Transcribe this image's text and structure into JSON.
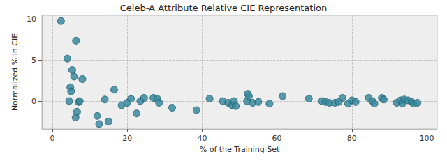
{
  "chart_data": {
    "type": "scatter",
    "title": "Celeb-A Attribute Relative CIE Representation",
    "x_label": "% of the Training Set",
    "y_label": "Normalized % in CIE",
    "x": [
      2.3,
      4,
      4.5,
      4.8,
      5,
      5.3,
      5.8,
      6.3,
      6.2,
      6.6,
      7,
      7.3,
      8,
      12,
      12.5,
      14,
      15,
      16.5,
      18.5,
      20,
      21,
      22.5,
      23.5,
      24.5,
      27,
      28,
      28.5,
      32,
      38.5,
      42,
      45.5,
      47,
      48,
      48.5,
      49,
      52,
      52.2,
      52.5,
      53.5,
      55,
      58,
      61.5,
      68.5,
      72,
      73,
      74,
      75.5,
      76.5,
      77.5,
      79,
      80,
      81,
      84.5,
      85.5,
      86,
      88,
      88.5,
      92,
      93,
      93.5,
      94,
      95,
      96,
      96.5,
      97.5
    ],
    "values": [
      9.8,
      5.2,
      0.0,
      1.7,
      1.2,
      3.8,
      3.0,
      7.4,
      -2.0,
      -1.3,
      -0.1,
      0.0,
      2.7,
      -1.8,
      -2.8,
      0.2,
      -2.5,
      1.4,
      -0.5,
      -0.2,
      0.3,
      -1.5,
      0.0,
      0.4,
      0.4,
      0.3,
      -0.2,
      -0.8,
      -1.1,
      0.3,
      0.0,
      -0.2,
      -0.5,
      0.0,
      -0.6,
      0.0,
      0.9,
      0.6,
      -0.2,
      -0.1,
      -0.3,
      0.6,
      0.3,
      0.0,
      -0.1,
      -0.2,
      -0.2,
      -0.1,
      0.4,
      -0.3,
      0.1,
      -0.1,
      0.4,
      0.0,
      -0.3,
      0.4,
      0.2,
      -0.2,
      0.1,
      -0.3,
      0.2,
      0.1,
      -0.1,
      -0.3,
      -0.2
    ],
    "color": "#3a8a9e",
    "marker": "circle",
    "xlim": [
      -2.8,
      102.8
    ],
    "xticks": [
      0,
      20,
      40,
      60,
      80,
      100
    ],
    "ylim": [
      -3.4,
      10.5
    ],
    "yticks": [
      0,
      5,
      10
    ],
    "grid": true
  }
}
